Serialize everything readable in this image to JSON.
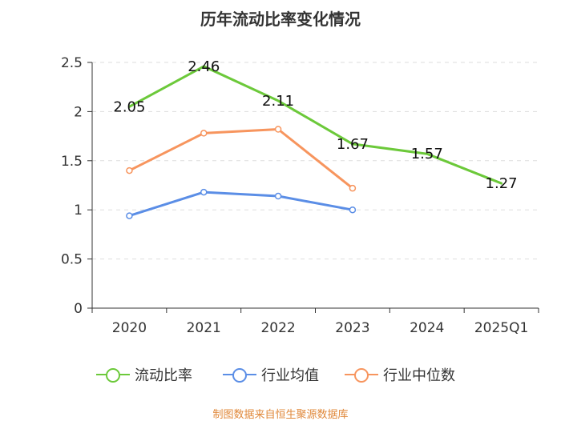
{
  "chart_data": {
    "type": "line",
    "title": "历年流动比率变化情况",
    "categories": [
      "2020",
      "2021",
      "2022",
      "2023",
      "2024",
      "2025Q1"
    ],
    "ylim": [
      0,
      2.5
    ],
    "yticks": [
      "0",
      "0.5",
      "1",
      "1.5",
      "2",
      "2.5"
    ],
    "grid": true,
    "legend_position": "bottom",
    "series": [
      {
        "name": "流动比率",
        "color": "#6cc93a",
        "values": [
          2.05,
          2.46,
          2.11,
          1.67,
          1.57,
          1.27
        ],
        "labels": [
          "2.05",
          "2.46",
          "2.11",
          "1.67",
          "1.57",
          "1.27"
        ],
        "show_markers": false
      },
      {
        "name": "行业均值",
        "color": "#5b8ee6",
        "values": [
          0.94,
          1.18,
          1.14,
          1.0,
          null,
          null
        ],
        "show_markers": true
      },
      {
        "name": "行业中位数",
        "color": "#f7955e",
        "values": [
          1.4,
          1.78,
          1.82,
          1.22,
          null,
          null
        ],
        "show_markers": true
      }
    ]
  },
  "source_note": {
    "text": "制图数据来自恒生聚源数据库",
    "color": "#e0883a"
  }
}
